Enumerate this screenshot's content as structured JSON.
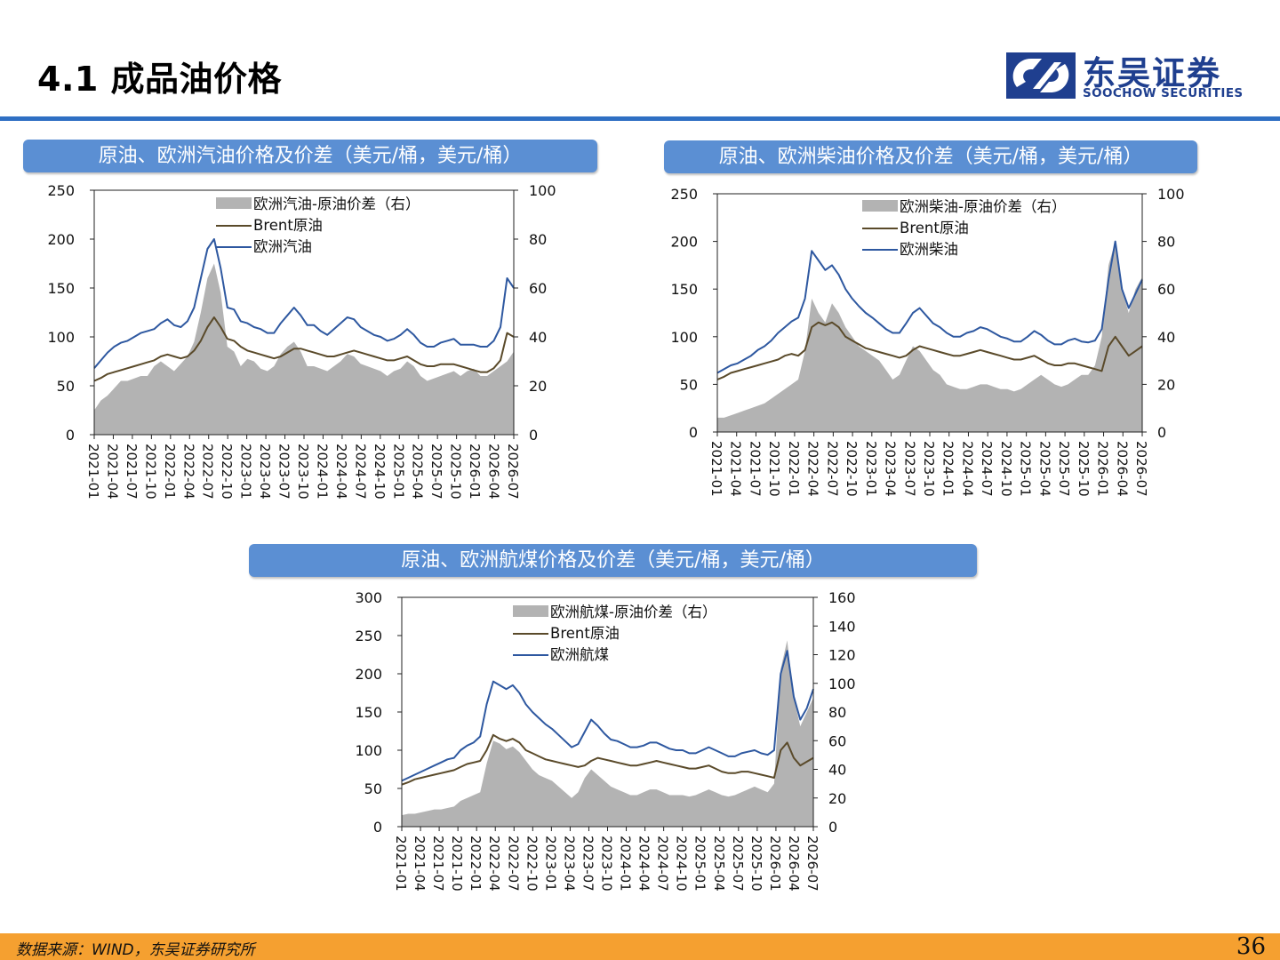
{
  "page": {
    "title": "4.1 成品油价格",
    "page_number": "36",
    "source": "数据来源：WIND，东吴证券研究所"
  },
  "logo": {
    "name_cn": "东吴证券",
    "name_en": "SOOCHOW SECURITIES"
  },
  "colors": {
    "brand": "#1f3f8f",
    "accent_line": "#2f6fc3",
    "panel_title_bg": "#5b8fd3",
    "footer_bg": "#f5a030",
    "spread": "#b3b3b3",
    "brent": "#5a4a2a",
    "product": "#2e58a0"
  },
  "chart_data": [
    {
      "type": "line",
      "title": "原油、欧洲汽油价格及价差（美元/桶，美元/桶）",
      "x_tick_labels": [
        "2021-01",
        "2021-04",
        "2021-07",
        "2021-10",
        "2022-01",
        "2022-04",
        "2022-07",
        "2022-10",
        "2023-01",
        "2023-04",
        "2023-07",
        "2023-10",
        "2024-01",
        "2024-04",
        "2024-07",
        "2024-10",
        "2025-01",
        "2025-04",
        "2025-07",
        "2025-10",
        "2026-01",
        "2026-04",
        "2026-07"
      ],
      "ylim_left": [
        0,
        250
      ],
      "yticks_left": [
        0,
        50,
        100,
        150,
        200,
        250
      ],
      "ylim_right": [
        0,
        100
      ],
      "yticks_right": [
        0,
        20,
        40,
        60,
        80,
        100
      ],
      "legend": [
        "欧洲汽油-原油价差（右）",
        "Brent原油",
        "欧洲汽油"
      ],
      "series": [
        {
          "name": "欧洲汽油-原油价差（右）",
          "kind": "area",
          "axis": "right",
          "values": [
            10,
            14,
            16,
            19,
            22,
            22,
            23,
            24,
            24,
            28,
            30,
            28,
            26,
            29,
            32,
            38,
            50,
            64,
            70,
            58,
            36,
            34,
            28,
            31,
            30,
            27,
            26,
            28,
            33,
            36,
            38,
            34,
            28,
            28,
            27,
            26,
            28,
            30,
            33,
            32,
            29,
            28,
            27,
            26,
            24,
            26,
            27,
            30,
            28,
            24,
            22,
            23,
            24,
            25,
            26,
            24,
            26,
            27,
            24,
            24,
            26,
            28,
            30,
            34
          ]
        },
        {
          "name": "Brent原油",
          "kind": "line",
          "axis": "left",
          "values": [
            55,
            58,
            62,
            64,
            66,
            68,
            70,
            72,
            74,
            76,
            80,
            82,
            80,
            78,
            80,
            86,
            96,
            110,
            120,
            110,
            98,
            96,
            90,
            86,
            84,
            82,
            80,
            78,
            80,
            84,
            88,
            88,
            86,
            84,
            82,
            80,
            80,
            82,
            84,
            86,
            84,
            82,
            80,
            78,
            76,
            76,
            78,
            80,
            76,
            72,
            70,
            70,
            72,
            72,
            72,
            70,
            68,
            66,
            64,
            64,
            68,
            76,
            104,
            100
          ]
        },
        {
          "name": "欧洲汽油",
          "kind": "line",
          "axis": "left",
          "values": [
            68,
            76,
            84,
            90,
            94,
            96,
            100,
            104,
            106,
            108,
            114,
            118,
            112,
            110,
            116,
            130,
            160,
            190,
            200,
            170,
            130,
            128,
            116,
            114,
            110,
            108,
            104,
            104,
            114,
            122,
            130,
            122,
            112,
            112,
            106,
            102,
            108,
            114,
            120,
            118,
            110,
            106,
            102,
            100,
            96,
            98,
            102,
            108,
            102,
            94,
            90,
            90,
            94,
            96,
            98,
            92,
            92,
            92,
            90,
            90,
            96,
            110,
            160,
            150
          ]
        }
      ]
    },
    {
      "type": "line",
      "title": "原油、欧洲柴油价格及价差（美元/桶，美元/桶）",
      "x_tick_labels": [
        "2021-01",
        "2021-04",
        "2021-07",
        "2021-10",
        "2022-01",
        "2022-04",
        "2022-07",
        "2022-10",
        "2023-01",
        "2023-04",
        "2023-07",
        "2023-10",
        "2024-01",
        "2024-04",
        "2024-07",
        "2024-10",
        "2025-01",
        "2025-04",
        "2025-07",
        "2025-10",
        "2026-01",
        "2026-04",
        "2026-07"
      ],
      "ylim_left": [
        0,
        250
      ],
      "yticks_left": [
        0,
        50,
        100,
        150,
        200,
        250
      ],
      "ylim_right": [
        0,
        100
      ],
      "yticks_right": [
        0,
        20,
        40,
        60,
        80,
        100
      ],
      "legend": [
        "欧洲柴油-原油价差（右）",
        "Brent原油",
        "欧洲柴油"
      ],
      "series": [
        {
          "name": "欧洲柴油-原油价差（右）",
          "kind": "area",
          "axis": "right",
          "values": [
            6,
            6,
            7,
            8,
            9,
            10,
            11,
            12,
            14,
            16,
            18,
            20,
            22,
            34,
            56,
            50,
            46,
            54,
            50,
            44,
            40,
            36,
            34,
            32,
            30,
            26,
            22,
            24,
            30,
            36,
            34,
            30,
            26,
            24,
            20,
            19,
            18,
            18,
            19,
            20,
            20,
            19,
            18,
            18,
            17,
            18,
            20,
            22,
            24,
            22,
            20,
            19,
            20,
            22,
            24,
            24,
            28,
            40,
            70,
            80,
            60,
            50,
            60,
            65
          ]
        },
        {
          "name": "Brent原油",
          "kind": "line",
          "axis": "left",
          "values": [
            55,
            58,
            62,
            64,
            66,
            68,
            70,
            72,
            74,
            76,
            80,
            82,
            80,
            86,
            110,
            115,
            112,
            115,
            110,
            100,
            96,
            92,
            88,
            86,
            84,
            82,
            80,
            78,
            80,
            86,
            90,
            88,
            86,
            84,
            82,
            80,
            80,
            82,
            84,
            86,
            84,
            82,
            80,
            78,
            76,
            76,
            78,
            80,
            76,
            72,
            70,
            70,
            72,
            72,
            70,
            68,
            66,
            64,
            90,
            100,
            90,
            80,
            85,
            90
          ]
        },
        {
          "name": "欧洲柴油",
          "kind": "line",
          "axis": "left",
          "values": [
            62,
            66,
            70,
            72,
            76,
            80,
            86,
            90,
            96,
            104,
            110,
            116,
            120,
            140,
            190,
            180,
            170,
            175,
            165,
            150,
            140,
            132,
            125,
            120,
            114,
            108,
            104,
            104,
            114,
            125,
            130,
            122,
            114,
            110,
            104,
            100,
            100,
            104,
            106,
            110,
            108,
            104,
            100,
            98,
            95,
            95,
            100,
            106,
            102,
            96,
            92,
            92,
            96,
            98,
            95,
            94,
            96,
            108,
            160,
            200,
            150,
            130,
            145,
            160
          ]
        }
      ]
    },
    {
      "type": "line",
      "title": "原油、欧洲航煤价格及价差（美元/桶，美元/桶）",
      "x_tick_labels": [
        "2021-01",
        "2021-04",
        "2021-07",
        "2021-10",
        "2022-01",
        "2022-04",
        "2022-07",
        "2022-10",
        "2023-01",
        "2023-04",
        "2023-07",
        "2023-10",
        "2024-01",
        "2024-04",
        "2024-07",
        "2024-10",
        "2025-01",
        "2025-04",
        "2025-07",
        "2025-10",
        "2026-01",
        "2026-04",
        "2026-07"
      ],
      "ylim_left": [
        0,
        300
      ],
      "yticks_left": [
        0,
        50,
        100,
        150,
        200,
        250,
        300
      ],
      "ylim_right": [
        0,
        160
      ],
      "yticks_right": [
        0,
        20,
        40,
        60,
        80,
        100,
        120,
        140,
        160
      ],
      "legend": [
        "欧洲航煤-原油价差（右）",
        "Brent原油",
        "欧洲航煤"
      ],
      "series": [
        {
          "name": "欧洲航煤-原油价差（右）",
          "kind": "area",
          "axis": "right",
          "values": [
            8,
            9,
            9,
            10,
            11,
            12,
            12,
            13,
            14,
            18,
            20,
            22,
            24,
            44,
            60,
            58,
            54,
            56,
            52,
            46,
            40,
            36,
            34,
            32,
            28,
            24,
            20,
            24,
            34,
            40,
            36,
            32,
            28,
            26,
            24,
            22,
            22,
            24,
            26,
            26,
            24,
            22,
            22,
            22,
            21,
            22,
            24,
            26,
            24,
            22,
            21,
            22,
            24,
            26,
            28,
            26,
            24,
            30,
            110,
            130,
            90,
            70,
            80,
            90
          ]
        },
        {
          "name": "Brent原油",
          "kind": "line",
          "axis": "left",
          "values": [
            55,
            58,
            62,
            64,
            66,
            68,
            70,
            72,
            74,
            78,
            82,
            84,
            86,
            100,
            120,
            115,
            112,
            115,
            110,
            100,
            96,
            92,
            88,
            86,
            84,
            82,
            80,
            78,
            80,
            86,
            90,
            88,
            86,
            84,
            82,
            80,
            80,
            82,
            84,
            86,
            84,
            82,
            80,
            78,
            76,
            76,
            78,
            80,
            76,
            72,
            70,
            70,
            72,
            72,
            70,
            68,
            66,
            64,
            100,
            110,
            90,
            80,
            85,
            90
          ]
        },
        {
          "name": "欧洲航煤",
          "kind": "line",
          "axis": "left",
          "values": [
            60,
            64,
            68,
            72,
            76,
            80,
            84,
            88,
            90,
            100,
            106,
            110,
            118,
            160,
            190,
            185,
            180,
            185,
            175,
            160,
            150,
            142,
            134,
            128,
            120,
            112,
            104,
            108,
            124,
            140,
            132,
            122,
            114,
            112,
            108,
            104,
            104,
            106,
            110,
            110,
            106,
            102,
            100,
            100,
            96,
            96,
            100,
            104,
            100,
            96,
            92,
            92,
            96,
            98,
            100,
            96,
            94,
            100,
            200,
            230,
            170,
            140,
            155,
            180
          ]
        }
      ]
    }
  ]
}
